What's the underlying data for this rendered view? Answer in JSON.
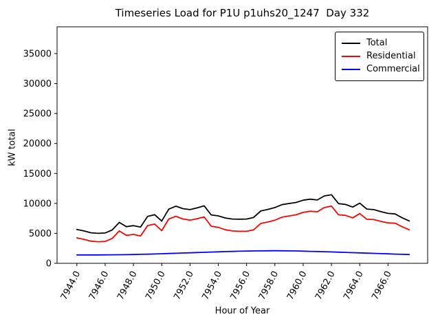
{
  "chart_data": {
    "type": "line",
    "title": "Timeseries Load for P1U p1uhs20_1247  Day 332",
    "xlabel": "Hour of Year",
    "ylabel": "kW total",
    "xlim": [
      7942.6,
      7968.8
    ],
    "ylim": [
      0,
      39470
    ],
    "grid": false,
    "legend_position": "upper right",
    "x_ticks": [
      7944,
      7946,
      7948,
      7950,
      7952,
      7954,
      7956,
      7958,
      7960,
      7962,
      7964,
      7966
    ],
    "x_tick_labels": [
      "7944.0",
      "7946.0",
      "7948.0",
      "7950.0",
      "7952.0",
      "7954.0",
      "7956.0",
      "7958.0",
      "7960.0",
      "7962.0",
      "7964.0",
      "7966.0"
    ],
    "y_ticks": [
      0,
      5000,
      10000,
      15000,
      20000,
      25000,
      30000,
      35000
    ],
    "y_tick_labels": [
      "0",
      "5000",
      "10000",
      "15000",
      "20000",
      "25000",
      "30000",
      "35000"
    ],
    "x": [
      7944.0,
      7944.5,
      7945.0,
      7945.5,
      7946.0,
      7946.5,
      7947.0,
      7947.5,
      7948.0,
      7948.5,
      7949.0,
      7949.5,
      7950.0,
      7950.5,
      7951.0,
      7951.5,
      7952.0,
      7952.5,
      7953.0,
      7953.5,
      7954.0,
      7954.5,
      7955.0,
      7955.5,
      7956.0,
      7956.5,
      7957.0,
      7957.5,
      7958.0,
      7958.5,
      7959.0,
      7959.5,
      7960.0,
      7960.5,
      7961.0,
      7961.5,
      7962.0,
      7962.5,
      7963.0,
      7963.5,
      7964.0,
      7964.5,
      7965.0,
      7965.5,
      7966.0,
      7966.5,
      7967.0,
      7967.5
    ],
    "series": [
      {
        "name": "Total",
        "color": "#000000",
        "values": [
          5650,
          5400,
          5100,
          5000,
          5060,
          5570,
          6830,
          6120,
          6290,
          6060,
          7830,
          8110,
          7050,
          9040,
          9530,
          9120,
          8960,
          9250,
          9590,
          8080,
          7920,
          7560,
          7390,
          7370,
          7390,
          7660,
          8730,
          8990,
          9300,
          9790,
          9980,
          10160,
          10530,
          10700,
          10570,
          11240,
          11450,
          9960,
          9820,
          9380,
          10040,
          9050,
          8960,
          8620,
          8330,
          8240,
          7600,
          7070
        ]
      },
      {
        "name": "Residential",
        "color": "#ff0000",
        "values": [
          4250,
          4000,
          3700,
          3600,
          3650,
          4150,
          5400,
          4670,
          4820,
          4560,
          6300,
          6550,
          5450,
          7400,
          7850,
          7400,
          7200,
          7450,
          7750,
          6200,
          6000,
          5600,
          5400,
          5350,
          5350,
          5600,
          6650,
          6900,
          7200,
          7700,
          7900,
          8100,
          8500,
          8700,
          8600,
          9300,
          9550,
          8100,
          8000,
          7600,
          8300,
          7350,
          7300,
          7000,
          6750,
          6700,
          6100,
          5600
        ]
      },
      {
        "name": "Commercial",
        "color": "#0000ff",
        "values": [
          1400,
          1400,
          1400,
          1400,
          1410,
          1420,
          1430,
          1450,
          1470,
          1500,
          1530,
          1560,
          1600,
          1640,
          1680,
          1720,
          1760,
          1800,
          1840,
          1880,
          1920,
          1960,
          1990,
          2020,
          2040,
          2060,
          2080,
          2090,
          2100,
          2090,
          2080,
          2060,
          2030,
          2000,
          1970,
          1940,
          1900,
          1860,
          1820,
          1780,
          1740,
          1700,
          1660,
          1620,
          1580,
          1540,
          1500,
          1470
        ]
      }
    ]
  }
}
